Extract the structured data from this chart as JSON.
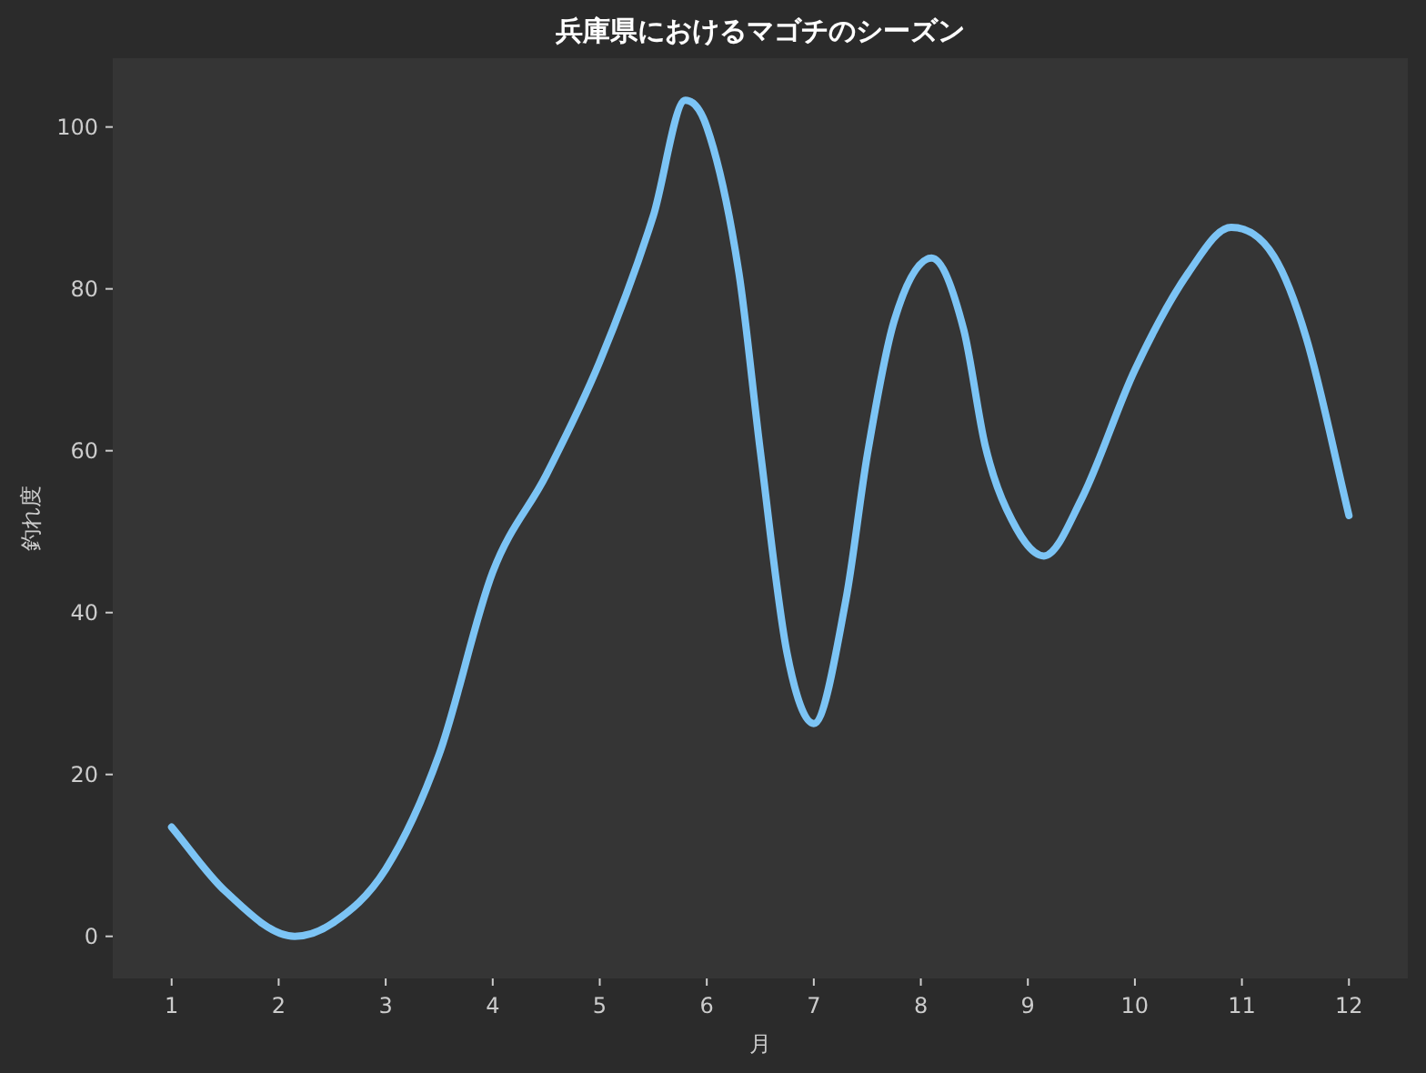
{
  "chart_data": {
    "type": "line",
    "title": "兵庫県におけるマゴチのシーズン",
    "xlabel": "月",
    "ylabel": "釣れ度",
    "x": [
      1,
      1.5,
      2.15,
      2.5,
      3,
      3.5,
      4,
      4.5,
      5,
      5.5,
      5.8,
      6,
      6.3,
      6.5,
      6.75,
      7,
      7.3,
      7.5,
      7.75,
      8.1,
      8.4,
      8.6,
      8.8,
      9.15,
      9.5,
      10,
      10.5,
      10.9,
      11.3,
      11.6,
      12
    ],
    "series": [
      {
        "color": "#7cc4f5",
        "values": [
          13.5,
          5.6,
          0,
          1.6,
          8.3,
          22.5,
          45,
          57,
          71,
          89,
          103.3,
          100,
          82,
          60,
          35,
          26.3,
          41.6,
          59.5,
          76,
          83.8,
          75,
          60.7,
          52.8,
          47,
          54,
          70,
          82,
          87.6,
          84,
          74,
          52
        ]
      }
    ],
    "xlim": [
      0.45,
      12.55
    ],
    "ylim": [
      -5.2,
      108.5
    ],
    "xticks": [
      1,
      2,
      3,
      4,
      5,
      6,
      7,
      8,
      9,
      10,
      11,
      12
    ],
    "yticks": [
      0,
      20,
      40,
      60,
      80,
      100
    ],
    "grid": false
  }
}
